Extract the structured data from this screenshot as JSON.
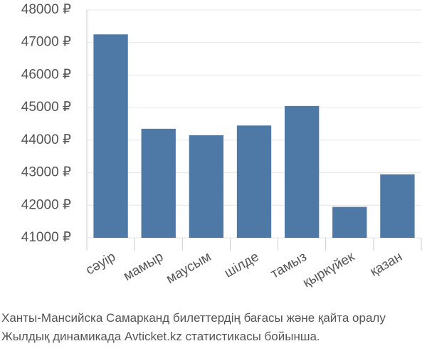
{
  "chart_data": {
    "type": "bar",
    "categories": [
      "сәуір",
      "мамыр",
      "маусым",
      "шілде",
      "тамыз",
      "қыркүйек",
      "қазан"
    ],
    "values": [
      47250,
      44350,
      44150,
      44450,
      45050,
      41950,
      42950
    ],
    "color": "#4e79a7",
    "ylim": [
      41000,
      48000
    ],
    "yticks": [
      {
        "value": 41000,
        "label": "41000 ₽"
      },
      {
        "value": 42000,
        "label": "42000 ₽"
      },
      {
        "value": 43000,
        "label": "43000 ₽"
      },
      {
        "value": 44000,
        "label": "44000 ₽"
      },
      {
        "value": 45000,
        "label": "45000 ₽"
      },
      {
        "value": 46000,
        "label": "46000 ₽"
      },
      {
        "value": 47000,
        "label": "47000 ₽"
      },
      {
        "value": 48000,
        "label": "48000 ₽"
      }
    ],
    "grid": true,
    "caption": [
      "Ханты-Мансийска Самарканд билеттердің бағасы және қайта оралу",
      "Жылдық динамикада Avticket.kz статистикасы бойынша."
    ]
  }
}
